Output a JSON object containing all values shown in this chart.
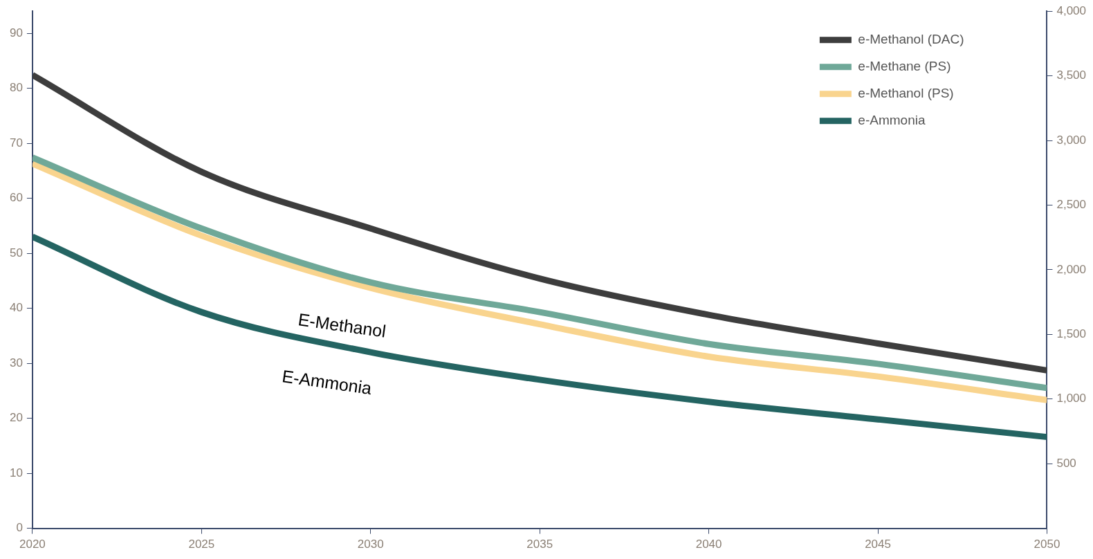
{
  "chart_data": {
    "type": "line",
    "x": [
      2020,
      2025,
      2030,
      2035,
      2040,
      2045,
      2050
    ],
    "xlim": [
      2020,
      2050
    ],
    "xticks": [
      2020,
      2025,
      2030,
      2035,
      2040,
      2045,
      2050
    ],
    "ylim": [
      0,
      94
    ],
    "yticks": [
      0,
      10,
      20,
      30,
      40,
      50,
      60,
      70,
      80,
      90
    ],
    "y2lim": [
      0,
      4000
    ],
    "y2ticks": [
      {
        "value": 500,
        "label": "500"
      },
      {
        "value": 1000,
        "label": "1,000"
      },
      {
        "value": 1500,
        "label": "1,500"
      },
      {
        "value": 2000,
        "label": "2,000"
      },
      {
        "value": 2500,
        "label": "2,500"
      },
      {
        "value": 3000,
        "label": "3,000"
      },
      {
        "value": 3500,
        "label": "3,500"
      },
      {
        "value": 4000,
        "label": "4,000"
      }
    ],
    "series": [
      {
        "name": "e-Methanol (DAC)",
        "color": "#3d3d3d",
        "values": [
          82.4,
          64.8,
          54.5,
          45.4,
          38.8,
          33.6,
          28.7
        ]
      },
      {
        "name": "e-Methane (PS)",
        "color": "#6fa898",
        "values": [
          67.4,
          54.5,
          44.7,
          39.3,
          33.5,
          29.9,
          25.5
        ]
      },
      {
        "name": "e-Methanol (PS)",
        "color": "#f9d48e",
        "values": [
          66.3,
          53.2,
          43.7,
          37.1,
          31.2,
          27.6,
          23.3
        ]
      },
      {
        "name": "e-Ammonia",
        "color": "#246462",
        "values": [
          53.0,
          39.3,
          32.0,
          27.0,
          23.0,
          19.8,
          16.6
        ]
      }
    ],
    "annotations": [
      "E-Methanol",
      "E-Ammonia"
    ],
    "legend": "top right",
    "grid": false,
    "marker": "none",
    "line_style": "solid"
  }
}
